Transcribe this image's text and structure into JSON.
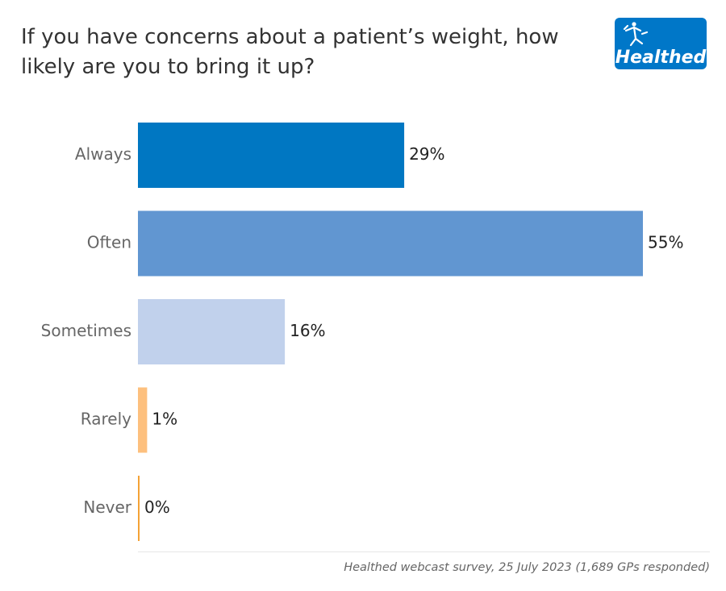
{
  "header": {
    "title": "If you have concerns about a patient’s weight, how likely are you to bring it up?",
    "logo_text": "Healthed"
  },
  "footer": {
    "source": "Healthed webcast survey, 25 July 2023 (1,689 GPs responded)"
  },
  "chart_data": {
    "type": "bar",
    "orientation": "horizontal",
    "title": "If you have concerns about a patient’s weight, how likely are you to bring it up?",
    "categories": [
      "Always",
      "Often",
      "Sometimes",
      "Rarely",
      "Never"
    ],
    "values": [
      29,
      55,
      16,
      1,
      0
    ],
    "value_labels": [
      "29%",
      "55%",
      "16%",
      "1%",
      "0%"
    ],
    "colors": [
      "#0077c2",
      "#6196d1",
      "#c1d1ec",
      "#fdc07e",
      "#f5a236"
    ],
    "unit": "%",
    "xlim": [
      0,
      55
    ],
    "grid": false,
    "legend": "none"
  }
}
